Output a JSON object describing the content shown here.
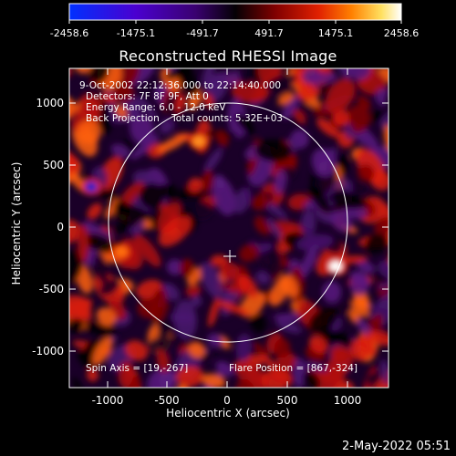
{
  "colorbar": {
    "tick_labels": [
      "-2458.6",
      "-1475.1",
      "-491.7",
      "491.7",
      "1475.1",
      "2458.6"
    ],
    "gradient_colors": [
      "#0033ff",
      "#5a00c8",
      "#3a0060",
      "#000000",
      "#8a0000",
      "#e02000",
      "#ff8000",
      "#ffd040",
      "#ffffff"
    ]
  },
  "plot": {
    "title": "Reconstructed RHESSI Image",
    "xlabel": "Heliocentric X (arcsec)",
    "ylabel": "Heliocentric Y (arcsec)",
    "x_ticks": [
      "-1000",
      "-500",
      "0",
      "500",
      "1000"
    ],
    "y_ticks": [
      "1000",
      "500",
      "0",
      "-500",
      "-1000"
    ],
    "info_lines": [
      "9-Oct-2002 22:12:36.000 to 22:14:40.000",
      "Detectors: 7F 8F 9F, Att 0",
      "Energy Range: 6.0 - 12.0 keV",
      "Back Projection    Total counts: 5.32E+03"
    ],
    "spin_axis": "Spin Axis = [19,-267]",
    "flare_position": "Flare Position = [867,-324]"
  },
  "footer": {
    "date": "2-May-2022 05:51"
  }
}
